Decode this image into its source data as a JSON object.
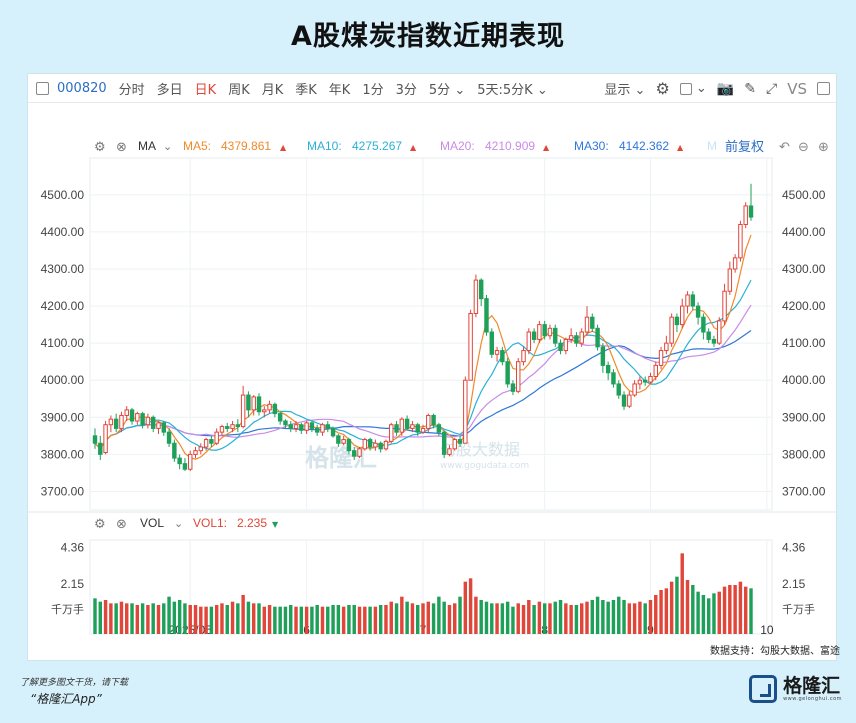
{
  "title": "A股煤炭指数近期表现",
  "toolbar": {
    "layout_icon": "sidebar-icon",
    "code": "000820",
    "items": [
      "分时",
      "多日",
      "日K",
      "周K",
      "月K",
      "季K",
      "年K",
      "1分",
      "3分",
      "5分",
      "5天:5分K"
    ],
    "active_index": 2,
    "display_label": "显示",
    "right_icons": [
      "gear-icon",
      "square-icon",
      "camera-icon",
      "pencil-icon",
      "expand-icon"
    ],
    "vs_label": "VS",
    "panel_icon": "panel-icon"
  },
  "ma_legend": {
    "label": "MA",
    "items": [
      {
        "name": "MA5:",
        "value": "4379.861",
        "color": "#ee8a2b"
      },
      {
        "name": "MA10:",
        "value": "4275.267",
        "color": "#2ab0d6"
      },
      {
        "name": "MA20:",
        "value": "4210.909",
        "color": "#c98be6"
      },
      {
        "name": "MA30:",
        "value": "4142.362",
        "color": "#2f77d8"
      }
    ],
    "extra": "M",
    "adjust_label": "前复权"
  },
  "vol_legend": {
    "label": "VOL",
    "name": "VOL1:",
    "value": "2.235"
  },
  "price_axis": {
    "ticks": [
      "4500.00",
      "4400.00",
      "4300.00",
      "4200.00",
      "4100.00",
      "4000.00",
      "3900.00",
      "3800.00",
      "3700.00"
    ]
  },
  "vol_axis": {
    "ticks": [
      "4.36",
      "2.15"
    ],
    "unit": "千万手"
  },
  "x_labels": [
    "2025/05",
    "6",
    "7",
    "8",
    "9",
    "10"
  ],
  "watermark": {
    "brand": "格隆汇",
    "sub": "www.gelonghui.com",
    "data": "勾股大数据",
    "data_sub": "www.gogudata.com"
  },
  "source": "数据支持：勾股大数据、富途",
  "footer_note": "了解更多图文干货，请下载",
  "footer_app": "“格隆汇App”",
  "brand": {
    "name": "格隆汇",
    "sub": "www.gelonghui.com"
  },
  "colors": {
    "up": "#e0463a",
    "down": "#1fa05a",
    "ma5": "#ee8a2b",
    "ma10": "#2ab0d6",
    "ma20": "#c98be6",
    "ma30": "#2f77d8",
    "volume": "#e0463a"
  },
  "chart_data": {
    "type": "candlestick",
    "series_names": [
      "MA5",
      "MA10",
      "MA20",
      "MA30",
      "VOL"
    ],
    "ylim": [
      3650,
      4540
    ],
    "vol_ylim": [
      0,
      4.8
    ],
    "month_markers": [
      {
        "label": "2025/05",
        "index": 18
      },
      {
        "label": "6",
        "index": 40
      },
      {
        "label": "7",
        "index": 62
      },
      {
        "label": "8",
        "index": 85
      },
      {
        "label": "9",
        "index": 105
      },
      {
        "label": "10",
        "index": 127
      }
    ],
    "candles": [
      [
        3850,
        3830,
        3870,
        3815,
        1.3
      ],
      [
        3830,
        3800,
        3850,
        3785,
        1.1
      ],
      [
        3805,
        3880,
        3890,
        3800,
        1.2
      ],
      [
        3880,
        3895,
        3905,
        3860,
        1.0
      ],
      [
        3895,
        3870,
        3910,
        3860,
        1.0
      ],
      [
        3870,
        3905,
        3915,
        3860,
        1.1
      ],
      [
        3905,
        3920,
        3930,
        3890,
        1.0
      ],
      [
        3920,
        3890,
        3925,
        3880,
        1.0
      ],
      [
        3890,
        3910,
        3915,
        3880,
        0.9
      ],
      [
        3910,
        3880,
        3915,
        3870,
        1.0
      ],
      [
        3880,
        3900,
        3910,
        3870,
        0.9
      ],
      [
        3900,
        3870,
        3905,
        3860,
        1.0
      ],
      [
        3870,
        3885,
        3890,
        3855,
        0.9
      ],
      [
        3885,
        3860,
        3890,
        3850,
        1.0
      ],
      [
        3860,
        3830,
        3870,
        3820,
        1.4
      ],
      [
        3830,
        3790,
        3840,
        3780,
        1.1
      ],
      [
        3790,
        3775,
        3800,
        3760,
        1.2
      ],
      [
        3775,
        3760,
        3790,
        3755,
        1.0
      ],
      [
        3760,
        3800,
        3810,
        3755,
        0.9
      ],
      [
        3800,
        3810,
        3820,
        3790,
        0.9
      ],
      [
        3810,
        3820,
        3830,
        3800,
        0.8
      ],
      [
        3820,
        3840,
        3845,
        3810,
        0.8
      ],
      [
        3840,
        3830,
        3850,
        3820,
        0.8
      ],
      [
        3830,
        3860,
        3870,
        3825,
        0.9
      ],
      [
        3860,
        3875,
        3880,
        3850,
        1.0
      ],
      [
        3875,
        3870,
        3885,
        3860,
        0.9
      ],
      [
        3870,
        3880,
        3890,
        3860,
        1.1
      ],
      [
        3880,
        3875,
        3895,
        3860,
        1.0
      ],
      [
        3875,
        3960,
        3985,
        3870,
        1.5
      ],
      [
        3960,
        3920,
        3970,
        3900,
        1.1
      ],
      [
        3920,
        3955,
        3960,
        3905,
        1.0
      ],
      [
        3955,
        3915,
        3965,
        3905,
        1.0
      ],
      [
        3915,
        3920,
        3930,
        3900,
        0.8
      ],
      [
        3920,
        3935,
        3945,
        3910,
        0.9
      ],
      [
        3935,
        3910,
        3940,
        3900,
        0.8
      ],
      [
        3910,
        3890,
        3915,
        3880,
        0.8
      ],
      [
        3890,
        3880,
        3895,
        3870,
        0.8
      ],
      [
        3880,
        3870,
        3890,
        3860,
        0.9
      ],
      [
        3870,
        3880,
        3890,
        3860,
        0.8
      ],
      [
        3880,
        3865,
        3885,
        3855,
        0.8
      ],
      [
        3865,
        3885,
        3890,
        3855,
        0.8
      ],
      [
        3885,
        3870,
        3890,
        3860,
        0.8
      ],
      [
        3870,
        3860,
        3880,
        3850,
        0.9
      ],
      [
        3860,
        3880,
        3885,
        3850,
        0.8
      ],
      [
        3880,
        3870,
        3890,
        3860,
        0.8
      ],
      [
        3870,
        3850,
        3875,
        3845,
        0.9
      ],
      [
        3850,
        3830,
        3855,
        3820,
        0.9
      ],
      [
        3830,
        3840,
        3850,
        3825,
        0.8
      ],
      [
        3840,
        3810,
        3845,
        3800,
        0.9
      ],
      [
        3810,
        3795,
        3820,
        3785,
        0.9
      ],
      [
        3795,
        3815,
        3820,
        3790,
        0.8
      ],
      [
        3815,
        3840,
        3845,
        3810,
        0.8
      ],
      [
        3840,
        3820,
        3845,
        3810,
        0.8
      ],
      [
        3820,
        3830,
        3840,
        3810,
        0.8
      ],
      [
        3830,
        3815,
        3835,
        3805,
        0.9
      ],
      [
        3815,
        3835,
        3840,
        3810,
        0.9
      ],
      [
        3835,
        3880,
        3885,
        3830,
        1.1
      ],
      [
        3880,
        3860,
        3890,
        3850,
        1.0
      ],
      [
        3860,
        3895,
        3900,
        3850,
        1.4
      ],
      [
        3895,
        3870,
        3905,
        3865,
        1.1
      ],
      [
        3870,
        3880,
        3890,
        3860,
        1.0
      ],
      [
        3880,
        3860,
        3885,
        3850,
        0.9
      ],
      [
        3860,
        3870,
        3880,
        3855,
        1.0
      ],
      [
        3870,
        3905,
        3910,
        3860,
        1.1
      ],
      [
        3905,
        3880,
        3910,
        3870,
        1.0
      ],
      [
        3880,
        3860,
        3885,
        3850,
        1.4
      ],
      [
        3860,
        3800,
        3865,
        3790,
        1.1
      ],
      [
        3800,
        3815,
        3825,
        3795,
        0.9
      ],
      [
        3815,
        3840,
        3845,
        3810,
        1.0
      ],
      [
        3840,
        3830,
        3850,
        3820,
        1.4
      ],
      [
        3830,
        4000,
        4010,
        3830,
        2.3
      ],
      [
        4000,
        4180,
        4190,
        4000,
        2.5
      ],
      [
        4180,
        4270,
        4285,
        4170,
        1.4
      ],
      [
        4270,
        4220,
        4275,
        4200,
        1.2
      ],
      [
        4220,
        4130,
        4230,
        4120,
        1.1
      ],
      [
        4130,
        4070,
        4140,
        4060,
        1.0
      ],
      [
        4070,
        4080,
        4090,
        4050,
        1.0
      ],
      [
        4080,
        4050,
        4090,
        4040,
        1.0
      ],
      [
        4050,
        3990,
        4060,
        3980,
        1.1
      ],
      [
        3990,
        3970,
        4000,
        3960,
        0.8
      ],
      [
        3970,
        4050,
        4060,
        3965,
        1.0
      ],
      [
        4050,
        4080,
        4090,
        4040,
        0.9
      ],
      [
        4080,
        4130,
        4140,
        4070,
        1.2
      ],
      [
        4130,
        4110,
        4140,
        4100,
        0.9
      ],
      [
        4110,
        4150,
        4160,
        4100,
        1.1
      ],
      [
        4150,
        4120,
        4160,
        4110,
        1.0
      ],
      [
        4120,
        4140,
        4150,
        4110,
        1.0
      ],
      [
        4140,
        4100,
        4150,
        4090,
        1.1
      ],
      [
        4100,
        4080,
        4110,
        4070,
        1.2
      ],
      [
        4080,
        4110,
        4115,
        4070,
        1.0
      ],
      [
        4110,
        4120,
        4140,
        4100,
        0.9
      ],
      [
        4120,
        4100,
        4130,
        4090,
        0.9
      ],
      [
        4100,
        4130,
        4140,
        4090,
        1.0
      ],
      [
        4130,
        4170,
        4200,
        4120,
        1.1
      ],
      [
        4170,
        4140,
        4180,
        4130,
        1.2
      ],
      [
        4140,
        4090,
        4150,
        4080,
        1.4
      ],
      [
        4090,
        4040,
        4100,
        4020,
        1.2
      ],
      [
        4040,
        4020,
        4050,
        4000,
        1.1
      ],
      [
        4020,
        3990,
        4030,
        3980,
        1.2
      ],
      [
        3990,
        3960,
        4000,
        3950,
        1.4
      ],
      [
        3960,
        3930,
        3970,
        3920,
        1.2
      ],
      [
        3930,
        3960,
        3970,
        3925,
        1.0
      ],
      [
        3960,
        3990,
        4000,
        3955,
        1.0
      ],
      [
        3990,
        4000,
        4010,
        3975,
        1.1
      ],
      [
        4000,
        3995,
        4010,
        3985,
        1.0
      ],
      [
        3995,
        4010,
        4020,
        3990,
        1.2
      ],
      [
        4010,
        4040,
        4050,
        4000,
        1.5
      ],
      [
        4040,
        4080,
        4090,
        4030,
        1.8
      ],
      [
        4080,
        4100,
        4120,
        4070,
        1.9
      ],
      [
        4100,
        4170,
        4180,
        4090,
        2.3
      ],
      [
        4170,
        4150,
        4180,
        4130,
        2.6
      ],
      [
        4150,
        4200,
        4220,
        4140,
        4.0
      ],
      [
        4200,
        4230,
        4240,
        4180,
        2.4
      ],
      [
        4230,
        4200,
        4240,
        4190,
        2.1
      ],
      [
        4200,
        4170,
        4210,
        4150,
        1.7
      ],
      [
        4170,
        4130,
        4180,
        4110,
        1.5
      ],
      [
        4130,
        4110,
        4140,
        4100,
        1.3
      ],
      [
        4110,
        4100,
        4120,
        4090,
        1.6
      ],
      [
        4100,
        4160,
        4170,
        4095,
        1.7
      ],
      [
        4160,
        4240,
        4260,
        4150,
        2.0
      ],
      [
        4240,
        4300,
        4320,
        4230,
        2.1
      ],
      [
        4300,
        4330,
        4340,
        4290,
        2.1
      ],
      [
        4330,
        4420,
        4430,
        4320,
        2.3
      ],
      [
        4420,
        4470,
        4480,
        4410,
        2.0
      ],
      [
        4470,
        4440,
        4530,
        4430,
        1.9
      ]
    ]
  }
}
